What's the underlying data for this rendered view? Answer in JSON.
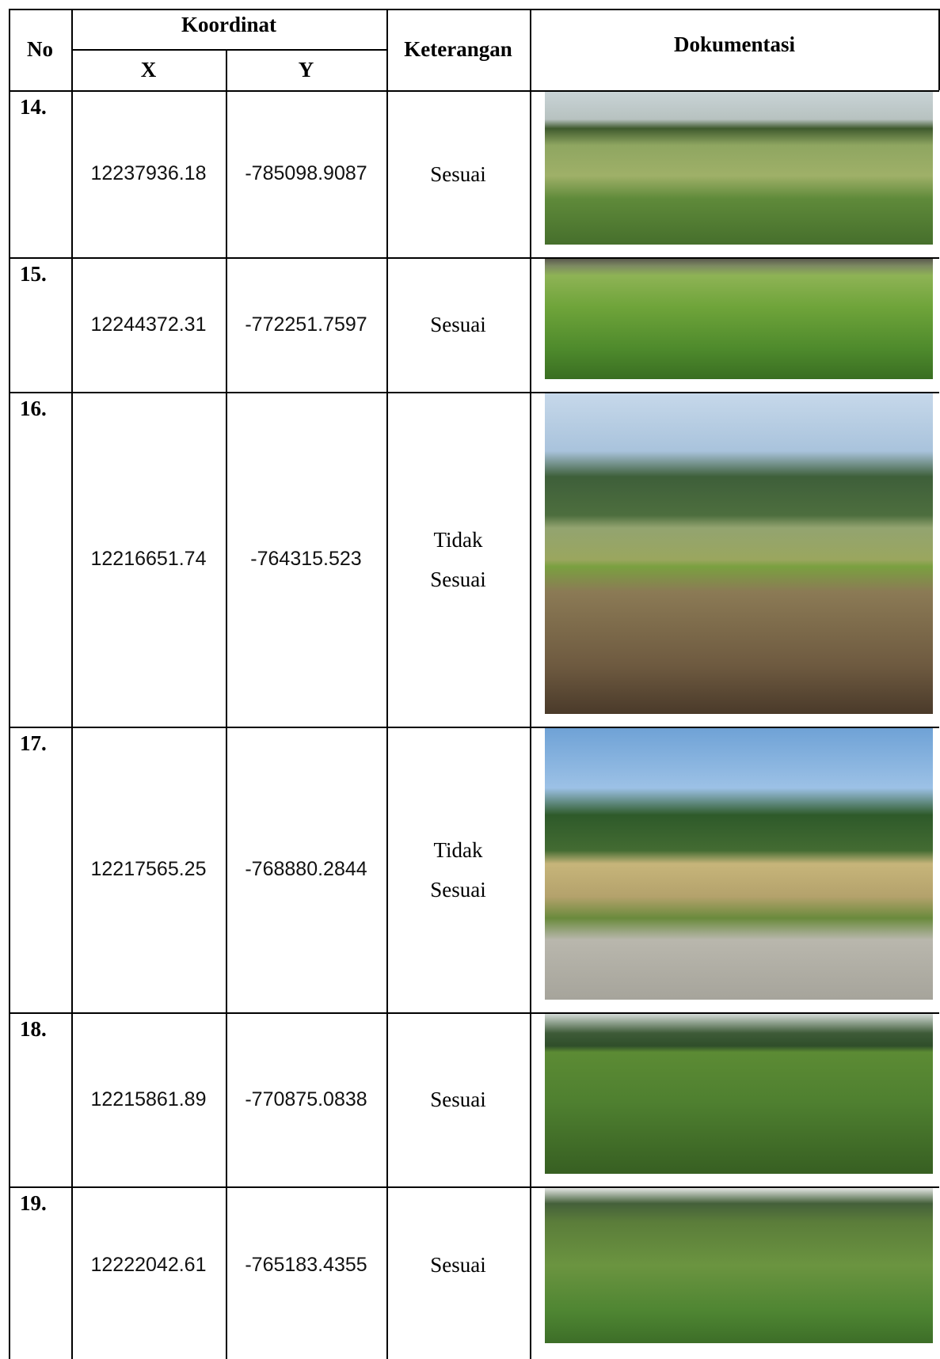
{
  "header": {
    "no": "No",
    "koordinat": "Koordinat",
    "x": "X",
    "y": "Y",
    "keterangan": "Keterangan",
    "dokumentasi": "Dokumentasi"
  },
  "table": {
    "rows": [
      [
        "14.",
        "12237936.18",
        "-785098.9087",
        "Sesuai"
      ],
      [
        "15.",
        "12244372.31",
        "-772251.7597",
        "Sesuai"
      ],
      [
        "16.",
        "12216651.74",
        "-764315.523",
        "Tidak Sesuai"
      ],
      [
        "17.",
        "12217565.25",
        "-768880.2844",
        "Tidak Sesuai"
      ],
      [
        "18.",
        "12215861.89",
        "-770875.0838",
        "Sesuai"
      ],
      [
        "19.",
        "12222042.61",
        "-765183.4355",
        "Sesuai"
      ]
    ]
  }
}
